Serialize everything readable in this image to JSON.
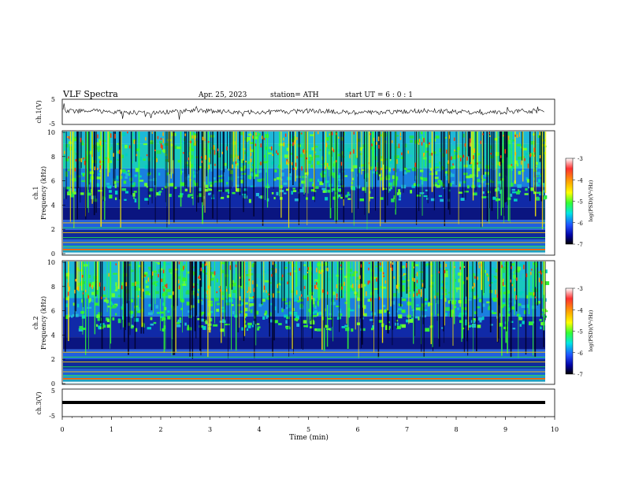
{
  "header": {
    "title": "VLF  Spectra",
    "date": "Apr. 25, 2023",
    "station": "station= ATH",
    "start": "start  UT  =   6  : 0   : 1"
  },
  "chart_data": [
    {
      "type": "line",
      "panel": "ch1-waveform",
      "ylabel": "ch.1(V)",
      "yticks": [
        "5",
        "-5"
      ],
      "ylim": [
        -5,
        5
      ],
      "xlim": [
        0,
        10
      ],
      "note_values": "noisy waveform around ~-0.3 V with spikes to about ±2 V"
    },
    {
      "type": "heatmap",
      "panel": "ch1-spectrogram",
      "ylabel": "ch.1\nFrequency  (kHz)",
      "ylabel_lines": [
        "ch.1",
        "Frequency  (kHz)"
      ],
      "yticks": [
        "10",
        "8",
        "6",
        "4",
        "2",
        "0"
      ],
      "ylim": [
        0,
        10
      ],
      "xlim": [
        0,
        10
      ],
      "colorbar": {
        "label": "log(PSD)(V²/Hz)",
        "ticks": [
          "-3",
          "-4",
          "-5",
          "-6",
          "-7"
        ],
        "range": [
          -7,
          -3
        ]
      }
    },
    {
      "type": "heatmap",
      "panel": "ch2-spectrogram",
      "ylabel_lines": [
        "ch.2",
        "Frequency  (kHz)"
      ],
      "yticks": [
        "10",
        "8",
        "6",
        "4",
        "2",
        "0"
      ],
      "ylim": [
        0,
        10
      ],
      "xlim": [
        0,
        10
      ],
      "colorbar": {
        "label": "log(PSD)(V²/Hz)",
        "ticks": [
          "-3",
          "-4",
          "-5",
          "-6",
          "-7"
        ],
        "range": [
          -7,
          -3
        ]
      }
    },
    {
      "type": "line",
      "panel": "ch3-waveform",
      "ylabel": "ch.3(V)",
      "yticks": [
        "5",
        "-5"
      ],
      "ylim": [
        -5,
        5
      ],
      "xlim": [
        0,
        10
      ],
      "note_values": "constant near -1 V"
    }
  ],
  "xaxis": {
    "label": "Time  (min)",
    "ticks": [
      "0",
      "1",
      "2",
      "3",
      "4",
      "5",
      "6",
      "7",
      "8",
      "9",
      "10"
    ]
  },
  "colors": {
    "line": "#000000",
    "frame": "#000000"
  }
}
